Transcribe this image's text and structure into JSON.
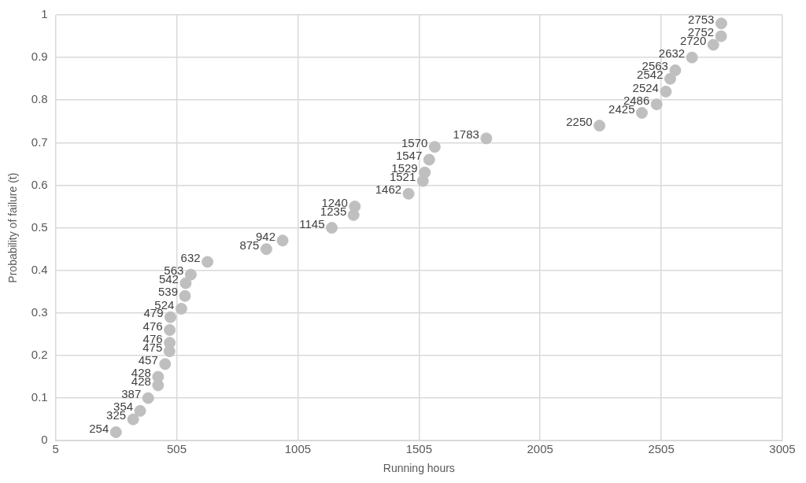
{
  "chart_data": {
    "type": "scatter",
    "xlabel": "Running hours",
    "ylabel": "Probability of failure (t)",
    "x": [
      254,
      325,
      354,
      387,
      428,
      428,
      457,
      475,
      476,
      476,
      479,
      524,
      539,
      542,
      563,
      632,
      875,
      942,
      1145,
      1235,
      1240,
      1462,
      1521,
      1529,
      1547,
      1570,
      1783,
      2250,
      2425,
      2486,
      2524,
      2542,
      2563,
      2632,
      2720,
      2752,
      2753
    ],
    "values": [
      0.02,
      0.05,
      0.07,
      0.1,
      0.13,
      0.15,
      0.18,
      0.21,
      0.23,
      0.26,
      0.29,
      0.31,
      0.34,
      0.37,
      0.39,
      0.42,
      0.45,
      0.47,
      0.5,
      0.53,
      0.55,
      0.58,
      0.61,
      0.63,
      0.66,
      0.69,
      0.71,
      0.74,
      0.77,
      0.79,
      0.82,
      0.85,
      0.87,
      0.9,
      0.93,
      0.95,
      0.98
    ],
    "annotations": [
      {
        "text": "254",
        "x": 254,
        "y": 0.02
      },
      {
        "text": "325",
        "x": 325,
        "y": 0.05
      },
      {
        "text": "354",
        "x": 354,
        "y": 0.07
      },
      {
        "text": "387",
        "x": 387,
        "y": 0.1
      },
      {
        "text": "428",
        "x": 428,
        "y": 0.13
      },
      {
        "text": "428",
        "x": 428,
        "y": 0.15
      },
      {
        "text": "457",
        "x": 457,
        "y": 0.18
      },
      {
        "text": "475",
        "x": 475,
        "y": 0.21
      },
      {
        "text": "476",
        "x": 476,
        "y": 0.23
      },
      {
        "text": "476",
        "x": 476,
        "y": 0.26
      },
      {
        "text": "479",
        "x": 479,
        "y": 0.29
      },
      {
        "text": "524",
        "x": 524,
        "y": 0.31
      },
      {
        "text": "539",
        "x": 539,
        "y": 0.34
      },
      {
        "text": "542",
        "x": 542,
        "y": 0.37
      },
      {
        "text": "563",
        "x": 563,
        "y": 0.39
      },
      {
        "text": "632",
        "x": 632,
        "y": 0.42
      },
      {
        "text": "875",
        "x": 875,
        "y": 0.45
      },
      {
        "text": "942",
        "x": 942,
        "y": 0.47
      },
      {
        "text": "1145",
        "x": 1145,
        "y": 0.5
      },
      {
        "text": "1235",
        "x": 1235,
        "y": 0.53
      },
      {
        "text": "1240",
        "x": 1240,
        "y": 0.55
      },
      {
        "text": "1462",
        "x": 1462,
        "y": 0.58
      },
      {
        "text": "1521",
        "x": 1521,
        "y": 0.61
      },
      {
        "text": "1529",
        "x": 1529,
        "y": 0.63
      },
      {
        "text": "1547",
        "x": 1547,
        "y": 0.66
      },
      {
        "text": "1570",
        "x": 1570,
        "y": 0.69
      },
      {
        "text": "1783",
        "x": 1783,
        "y": 0.71
      },
      {
        "text": "2250",
        "x": 2250,
        "y": 0.74
      },
      {
        "text": "2425",
        "x": 2425,
        "y": 0.77
      },
      {
        "text": "2486",
        "x": 2486,
        "y": 0.79
      },
      {
        "text": "2524",
        "x": 2524,
        "y": 0.82
      },
      {
        "text": "2542",
        "x": 2542,
        "y": 0.85
      },
      {
        "text": "2563",
        "x": 2563,
        "y": 0.87
      },
      {
        "text": "2632",
        "x": 2632,
        "y": 0.9
      },
      {
        "text": "2720",
        "x": 2720,
        "y": 0.93
      },
      {
        "text": "2752",
        "x": 2752,
        "y": 0.95
      },
      {
        "text": "2753",
        "x": 2753,
        "y": 0.98
      }
    ],
    "color": "#bfbfbf",
    "marker": "circle",
    "grid": true,
    "legend": false,
    "xlim": [
      5,
      3005
    ],
    "xticks": [
      5,
      505,
      1005,
      1505,
      2005,
      2505,
      3005
    ],
    "ylim": [
      0,
      1
    ],
    "yticks": [
      0,
      0.1,
      0.2,
      0.3,
      0.4,
      0.5,
      0.6,
      0.7,
      0.8,
      0.9,
      1
    ]
  }
}
